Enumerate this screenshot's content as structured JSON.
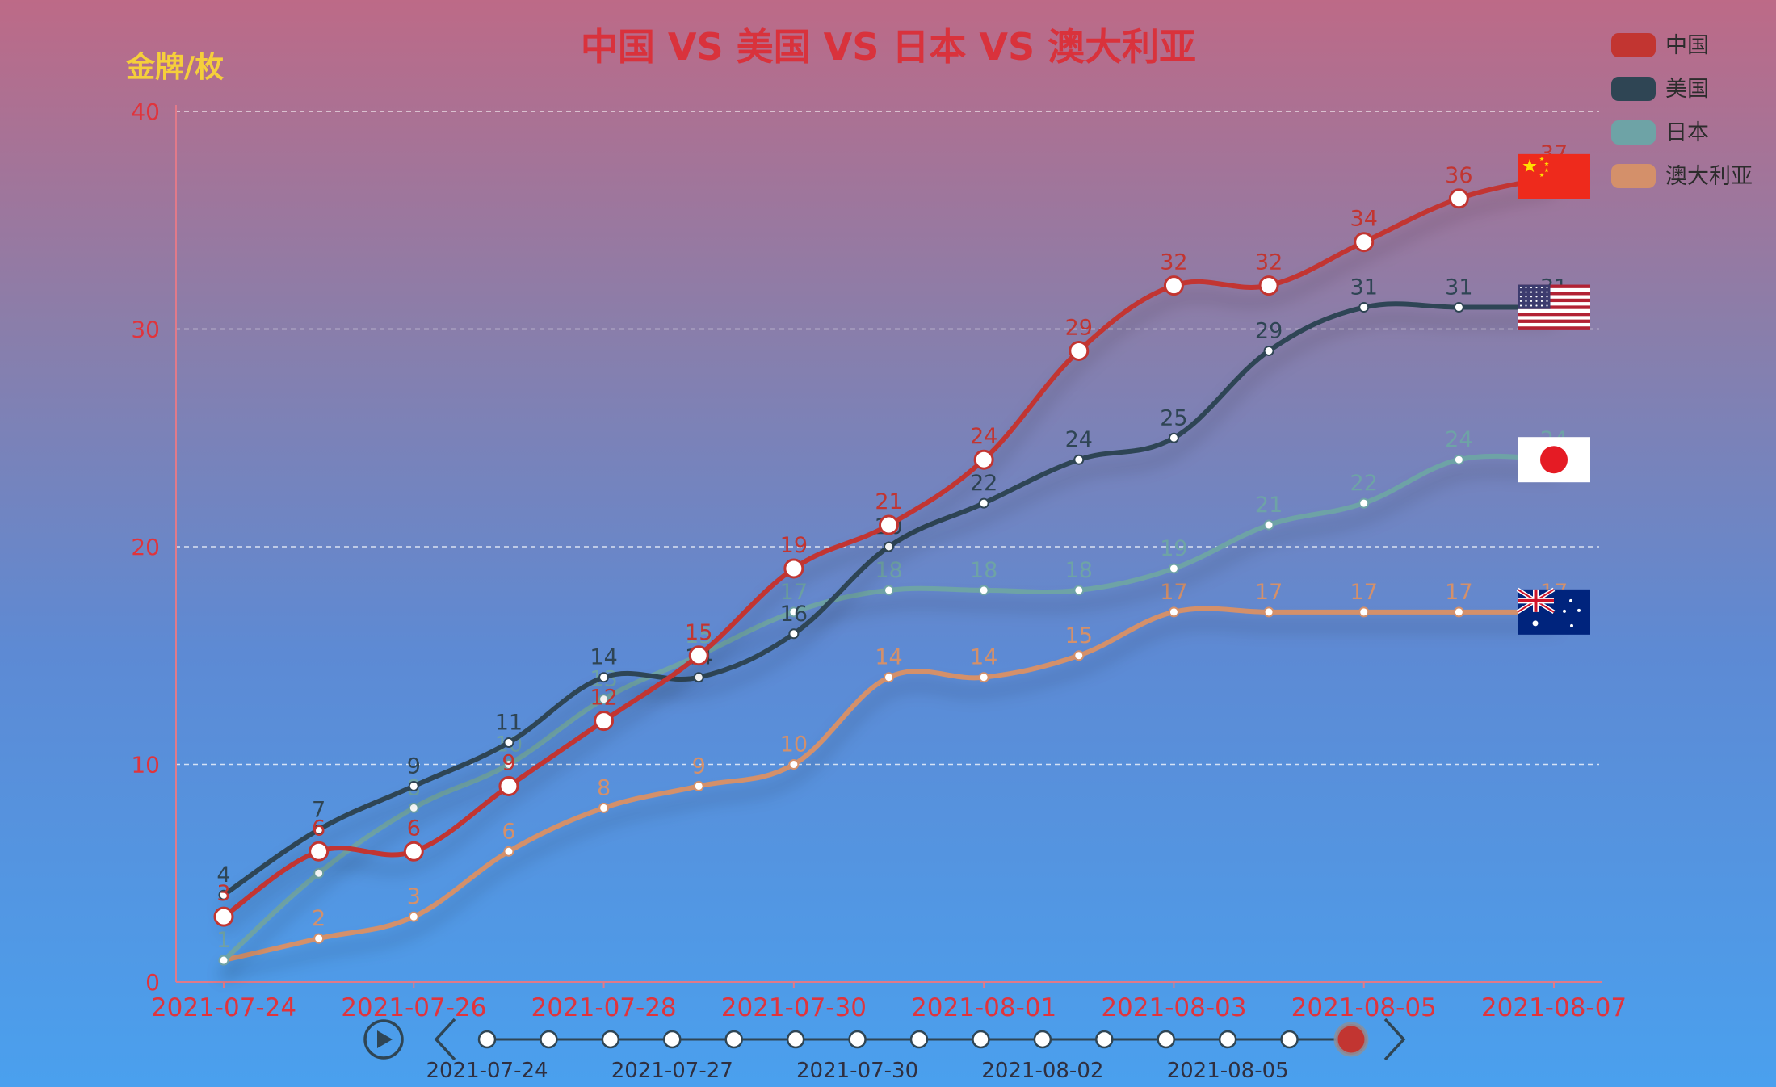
{
  "chart_data": {
    "type": "line",
    "title": "中国 VS 美国 VS 日本 VS 澳大利亚",
    "y_unit_label": "金牌/枚",
    "ylim": [
      0,
      40
    ],
    "y_ticks": [
      "0",
      "10",
      "20",
      "30",
      "40"
    ],
    "x": [
      "2021-07-24",
      "2021-07-25",
      "2021-07-26",
      "2021-07-27",
      "2021-07-28",
      "2021-07-29",
      "2021-07-30",
      "2021-07-31",
      "2021-08-01",
      "2021-08-02",
      "2021-08-03",
      "2021-08-04",
      "2021-08-05",
      "2021-08-06",
      "2021-08-07"
    ],
    "x_tick_labels": [
      "2021-07-24",
      "2021-07-26",
      "2021-07-28",
      "2021-07-30",
      "2021-08-01",
      "2021-08-03",
      "2021-08-05",
      "2021-08-07"
    ],
    "grid": "horizontal dashed",
    "legend_position": "top-right",
    "series": [
      {
        "name": "中国",
        "color": "#c23531",
        "flag": "china-flag",
        "big_markers": true,
        "values": [
          3,
          6,
          6,
          9,
          12,
          15,
          19,
          21,
          24,
          29,
          32,
          32,
          34,
          36,
          37
        ]
      },
      {
        "name": "美国",
        "color": "#2f4554",
        "flag": "usa-flag",
        "big_markers": false,
        "values": [
          4,
          7,
          9,
          11,
          14,
          14,
          16,
          20,
          22,
          24,
          25,
          29,
          31,
          31,
          31
        ]
      },
      {
        "name": "日本",
        "color": "#6ea3a6",
        "flag": "japan-flag",
        "big_markers": false,
        "values": [
          1,
          5,
          8,
          10,
          13,
          15,
          17,
          18,
          18,
          18,
          19,
          21,
          22,
          24,
          24
        ]
      },
      {
        "name": "澳大利亚",
        "color": "#d4906a",
        "flag": "australia-flag",
        "big_markers": false,
        "values": [
          1,
          2,
          3,
          6,
          8,
          9,
          10,
          14,
          14,
          15,
          17,
          17,
          17,
          17,
          17
        ]
      }
    ]
  },
  "timeline": {
    "play_icon": "play-icon",
    "prev_icon": "chevron-left-icon",
    "next_icon": "chevron-right-icon",
    "total_points": 15,
    "current_index": 14,
    "labels": [
      "2021-07-24",
      "2021-07-27",
      "2021-07-30",
      "2021-08-02",
      "2021-08-05"
    ],
    "label_indices": [
      0,
      3,
      6,
      9,
      12
    ],
    "active_color": "#c23531"
  }
}
